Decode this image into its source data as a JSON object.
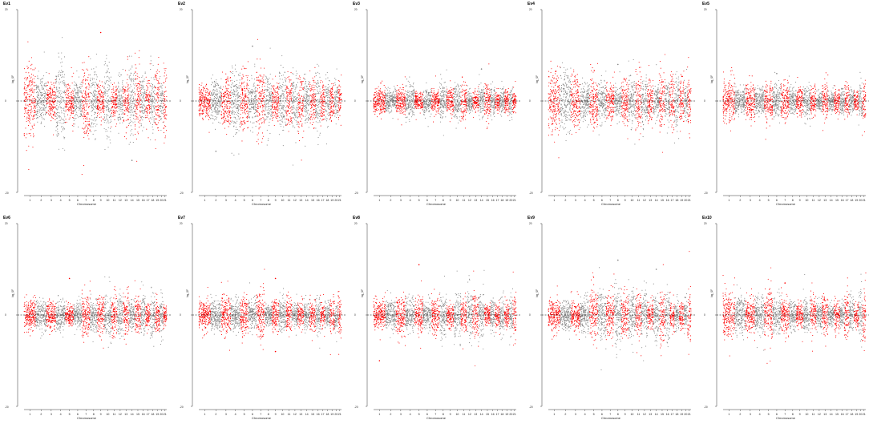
{
  "chart_data": {
    "type": "scatter",
    "layout": "2 rows x 5 columns of Manhattan-style plots",
    "shared": {
      "xlabel": "Chromosome",
      "ylabel": "log_SF",
      "chromosome_ticks": [
        "1",
        "2",
        "3",
        "4",
        "5",
        "6",
        "7",
        "8",
        "9",
        "10",
        "11",
        "12",
        "13",
        "14",
        "15",
        "16",
        "17",
        "18",
        "19",
        "20",
        "21"
      ],
      "chromosome_lengths": [
        10,
        9,
        8,
        8,
        7,
        7,
        7,
        6,
        6,
        6,
        5,
        5,
        5,
        5,
        5,
        4,
        4,
        4,
        4,
        3,
        3
      ],
      "ytick_labels": {
        "top": "20",
        "middle": "0",
        "bottom": "-20"
      },
      "ylim": [
        -20,
        20
      ],
      "baseline": 0,
      "alternating_colors": [
        "#ff0000",
        "#808080"
      ]
    },
    "panels": [
      {
        "title": "Ev1",
        "spread": 8,
        "highlight": [
          {
            "chrom": 9,
            "value": 15
          },
          {
            "chrom": 14,
            "value": -13
          }
        ]
      },
      {
        "title": "Ev2",
        "spread": 7,
        "highlight": [
          {
            "chrom": 2,
            "value": -11
          },
          {
            "chrom": 6,
            "value": 12
          }
        ]
      },
      {
        "title": "Ev3",
        "spread": 4,
        "highlight": [
          {
            "chrom": 14,
            "value": 7
          }
        ]
      },
      {
        "title": "Ev4",
        "spread": 6,
        "highlight": [
          {
            "chrom": 8,
            "value": 8
          }
        ]
      },
      {
        "title": "Ev5",
        "spread": 4,
        "highlight": [
          {
            "chrom": 6,
            "value": 6
          }
        ]
      },
      {
        "title": "Ev6",
        "spread": 5,
        "highlight": [
          {
            "chrom": 5,
            "value": 8
          }
        ]
      },
      {
        "title": "Ev7",
        "spread": 5,
        "highlight": [
          {
            "chrom": 9,
            "value": 8
          },
          {
            "chrom": 9,
            "value": -8
          }
        ]
      },
      {
        "title": "Ev8",
        "spread": 5,
        "highlight": [
          {
            "chrom": 5,
            "value": 11
          },
          {
            "chrom": 1,
            "value": -10
          }
        ]
      },
      {
        "title": "Ev9",
        "spread": 6,
        "highlight": [
          {
            "chrom": 8,
            "value": 12
          },
          {
            "chrom": 14,
            "value": 10
          }
        ]
      },
      {
        "title": "Ev10",
        "spread": 5,
        "highlight": [
          {
            "chrom": 7,
            "value": 7
          }
        ]
      }
    ]
  }
}
